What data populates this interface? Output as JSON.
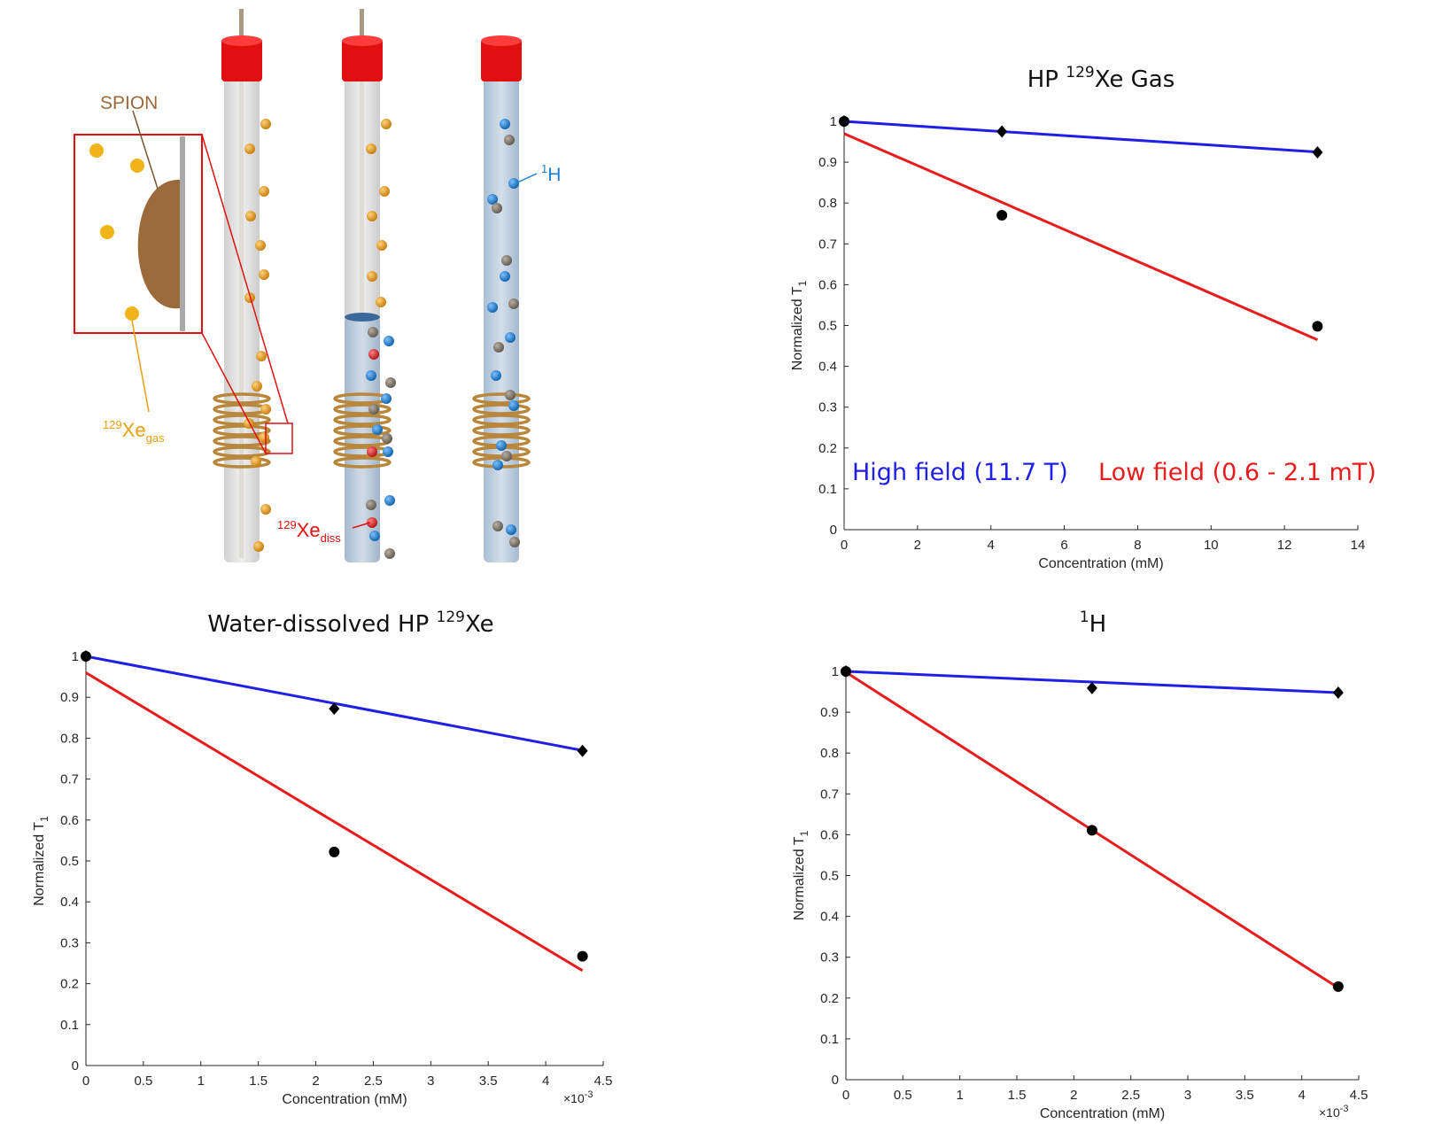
{
  "colors": {
    "high_field": "#1f1fe6",
    "low_field": "#e81c1c",
    "marker": "#000000",
    "cap": "#e01010",
    "xe_gas": "#e8a010",
    "spion": "#9b6a3a",
    "h1": "#1a7fd0",
    "xe_diss": "#e03030",
    "water": "#b7c9dc",
    "coil": "#b8873a"
  },
  "diagram": {
    "spion_label": "SPION",
    "xe_gas_label": {
      "base": "Xe",
      "sup": "129",
      "sub": "gas"
    },
    "xe_diss_label": {
      "base": "Xe",
      "sup": "129",
      "sub": "diss"
    },
    "h_label": {
      "base": "H",
      "sup": "1"
    }
  },
  "legend": {
    "high": "High field (11.7 T)",
    "low": "Low field (0.6 - 2.1 mT)"
  },
  "chart_data": [
    {
      "id": "gas",
      "type": "scatter",
      "title_pre": "HP ",
      "title_sup": "129",
      "title_post": "Xe Gas",
      "xlabel": "Concentration (mM)",
      "ylabel": "Normalized T",
      "ylabel_sub": "1",
      "xlim": [
        0,
        14
      ],
      "ylim": [
        0,
        1
      ],
      "xticks": [
        "0",
        "2",
        "4",
        "6",
        "8",
        "10",
        "12",
        "14"
      ],
      "xtick_values": [
        0,
        2,
        4,
        6,
        8,
        10,
        12,
        14
      ],
      "yticks": [
        "0",
        "0.1",
        "0.2",
        "0.3",
        "0.4",
        "0.5",
        "0.6",
        "0.7",
        "0.8",
        "0.9",
        "1"
      ],
      "ytick_values": [
        0,
        0.1,
        0.2,
        0.3,
        0.4,
        0.5,
        0.6,
        0.7,
        0.8,
        0.9,
        1
      ],
      "exponent": "",
      "series": [
        {
          "name": "High field (11.7 T)",
          "marker": "diamond",
          "x": [
            0,
            4.3,
            12.9
          ],
          "y": [
            1.0,
            0.975,
            0.924
          ],
          "fit": [
            [
              0,
              1.0
            ],
            [
              12.9,
              0.925
            ]
          ]
        },
        {
          "name": "Low field (0.6 - 2.1 mT)",
          "marker": "circle",
          "x": [
            0,
            4.3,
            12.9
          ],
          "y": [
            1.0,
            0.77,
            0.498
          ],
          "fit": [
            [
              0,
              0.97
            ],
            [
              12.9,
              0.465
            ]
          ]
        }
      ]
    },
    {
      "id": "water",
      "type": "scatter",
      "title_pre": "Water-dissolved HP ",
      "title_sup": "129",
      "title_post": "Xe",
      "xlabel": "Concentration (mM)",
      "ylabel": "Normalized T",
      "ylabel_sub": "1",
      "xlim": [
        0,
        4.5
      ],
      "ylim": [
        0,
        1
      ],
      "xticks": [
        "0",
        "0.5",
        "1",
        "1.5",
        "2",
        "2.5",
        "3",
        "3.5",
        "4",
        "4.5"
      ],
      "xtick_values": [
        0,
        0.5,
        1,
        1.5,
        2,
        2.5,
        3,
        3.5,
        4,
        4.5
      ],
      "yticks": [
        "0",
        "0.1",
        "0.2",
        "0.3",
        "0.4",
        "0.5",
        "0.6",
        "0.7",
        "0.8",
        "0.9",
        "1"
      ],
      "ytick_values": [
        0,
        0.1,
        0.2,
        0.3,
        0.4,
        0.5,
        0.6,
        0.7,
        0.8,
        0.9,
        1
      ],
      "exponent": "×10",
      "exponent_sup": "-3",
      "series": [
        {
          "name": "High field (11.7 T)",
          "marker": "diamond",
          "x": [
            0,
            2.16,
            4.32
          ],
          "y": [
            1.0,
            0.872,
            0.769
          ],
          "fit": [
            [
              0,
              1.0
            ],
            [
              4.32,
              0.77
            ]
          ]
        },
        {
          "name": "Low field (0.6 - 2.1 mT)",
          "marker": "circle",
          "x": [
            0,
            2.16,
            4.32
          ],
          "y": [
            1.0,
            0.522,
            0.267
          ],
          "fit": [
            [
              0,
              0.96
            ],
            [
              4.32,
              0.232
            ]
          ]
        }
      ]
    },
    {
      "id": "h1",
      "type": "scatter",
      "title_pre": "",
      "title_sup": "1",
      "title_post": "H",
      "xlabel": "Concentration (mM)",
      "ylabel": "Normalized T",
      "ylabel_sub": "1",
      "xlim": [
        0,
        4.5
      ],
      "ylim": [
        0,
        1
      ],
      "xticks": [
        "0",
        "0.5",
        "1",
        "1.5",
        "2",
        "2.5",
        "3",
        "3.5",
        "4",
        "4.5"
      ],
      "xtick_values": [
        0,
        0.5,
        1,
        1.5,
        2,
        2.5,
        3,
        3.5,
        4,
        4.5
      ],
      "yticks": [
        "0",
        "0.1",
        "0.2",
        "0.3",
        "0.4",
        "0.5",
        "0.6",
        "0.7",
        "0.8",
        "0.9",
        "1"
      ],
      "ytick_values": [
        0,
        0.1,
        0.2,
        0.3,
        0.4,
        0.5,
        0.6,
        0.7,
        0.8,
        0.9,
        1
      ],
      "exponent": "×10",
      "exponent_sup": "-3",
      "series": [
        {
          "name": "High field (11.7 T)",
          "marker": "diamond",
          "x": [
            0,
            2.16,
            4.32
          ],
          "y": [
            1.0,
            0.959,
            0.948
          ],
          "fit": [
            [
              0,
              1.0
            ],
            [
              4.32,
              0.948
            ]
          ]
        },
        {
          "name": "Low field (0.6 - 2.1 mT)",
          "marker": "circle",
          "x": [
            0,
            2.16,
            4.32
          ],
          "y": [
            1.0,
            0.611,
            0.228
          ],
          "fit": [
            [
              0,
              0.998
            ],
            [
              4.32,
              0.225
            ]
          ]
        }
      ]
    }
  ]
}
